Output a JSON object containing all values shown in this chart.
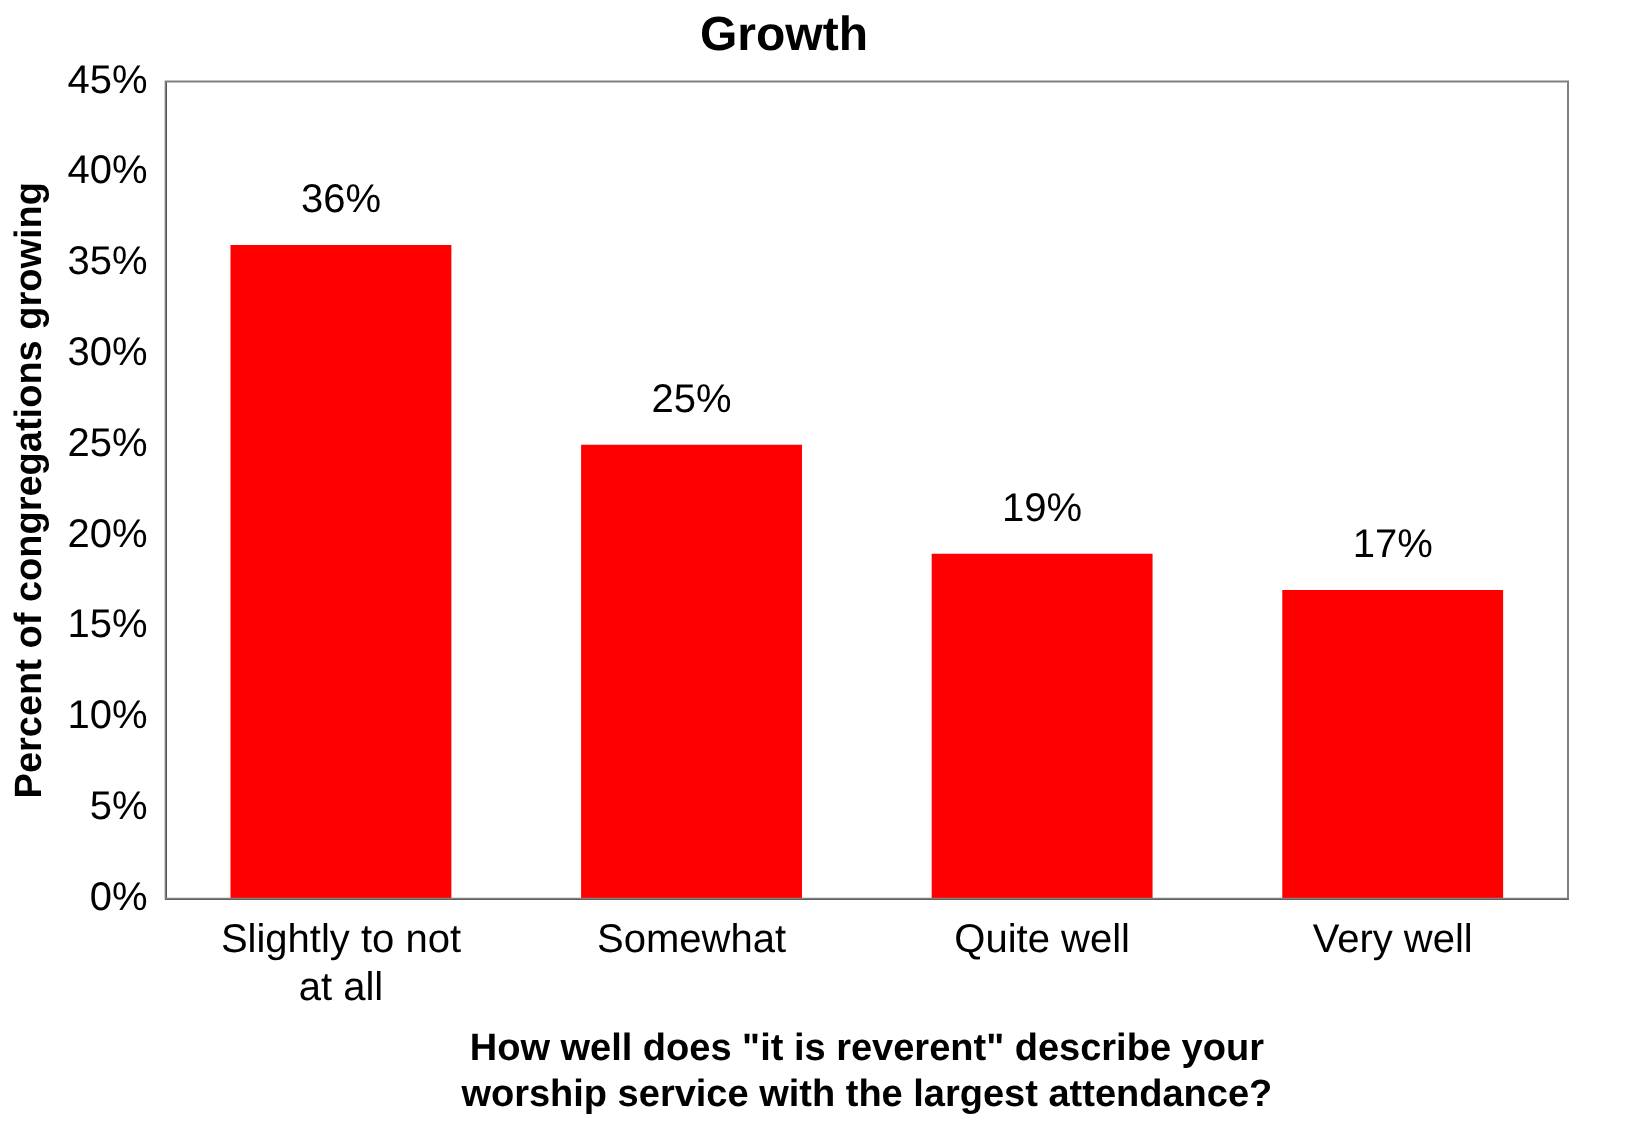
{
  "chart_data": {
    "type": "bar",
    "title": "Growth",
    "xlabel": "How well does \"it is reverent\" describe your worship service with the largest attendance?",
    "ylabel": "Percent of congregations growing",
    "categories": [
      "Slightly to not at all",
      "Somewhat",
      "Quite well",
      "Very well"
    ],
    "values": [
      36,
      25,
      19,
      17
    ],
    "value_labels": [
      "36%",
      "25%",
      "19%",
      "17%"
    ],
    "color": "#ff0000",
    "ylim": [
      0,
      45
    ],
    "yticks": [
      {
        "value": 0,
        "label": "0%"
      },
      {
        "value": 5,
        "label": "5%"
      },
      {
        "value": 10,
        "label": "10%"
      },
      {
        "value": 15,
        "label": "15%"
      },
      {
        "value": 20,
        "label": "20%"
      },
      {
        "value": 25,
        "label": "25%"
      },
      {
        "value": 30,
        "label": "30%"
      },
      {
        "value": 35,
        "label": "35%"
      },
      {
        "value": 40,
        "label": "40%"
      },
      {
        "value": 45,
        "label": "45%"
      }
    ],
    "grid": false,
    "legend": false
  }
}
